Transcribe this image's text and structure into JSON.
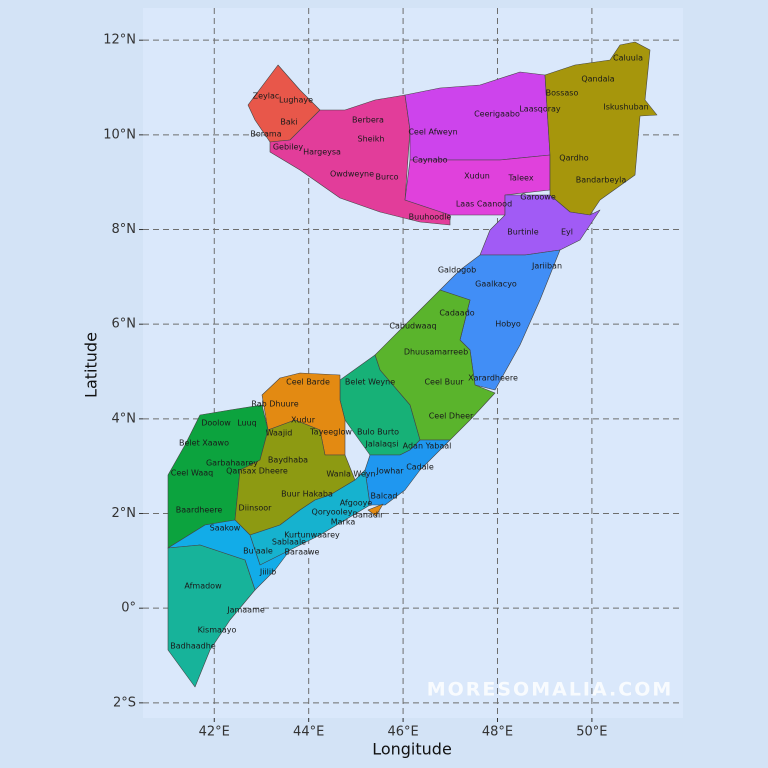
{
  "map": {
    "x_label": "Longitude",
    "y_label": "Latitude",
    "xlim": [
      40.49,
      51.93
    ],
    "ylim": [
      -2.32,
      12.68
    ],
    "xticks": [
      {
        "value": 42,
        "label": "42°E"
      },
      {
        "value": 44,
        "label": "44°E"
      },
      {
        "value": 46,
        "label": "46°E"
      },
      {
        "value": 48,
        "label": "48°E"
      },
      {
        "value": 50,
        "label": "50°E"
      }
    ],
    "yticks": [
      {
        "value": -2,
        "label": "2°S"
      },
      {
        "value": 0,
        "label": "0°"
      },
      {
        "value": 2,
        "label": "2°N"
      },
      {
        "value": 4,
        "label": "4°N"
      },
      {
        "value": 6,
        "label": "6°N"
      },
      {
        "value": 8,
        "label": "8°N"
      },
      {
        "value": 10,
        "label": "10°N"
      },
      {
        "value": 12,
        "label": "12°N"
      }
    ],
    "grid": true,
    "districts": [
      "Caluula",
      "Qandala",
      "Bossaso",
      "Iskushuban",
      "Laasqoray",
      "Ceerigaabo",
      "Zeylac",
      "Lughaye",
      "Baki",
      "Borama",
      "Gebiley",
      "Berbera",
      "Ceel Afweyn",
      "Sheikh",
      "Hargeysa",
      "Caynabo",
      "Qardho",
      "Owdweyne",
      "Burco",
      "Xudun",
      "Taleex",
      "Bandarbeyla",
      "Garoowe",
      "Laas Caanood",
      "Buuhoodle",
      "Burtinle",
      "Eyl",
      "Jariiban",
      "Galdogob",
      "Gaalkacyo",
      "Cadaado",
      "Hobyo",
      "Cabudwaaq",
      "Dhuusamarreeb",
      "Xarardheere",
      "Ceel Barde",
      "Belet Weyne",
      "Ceel Buur",
      "Rab Dhuure",
      "Ceel Dheer",
      "Doolow",
      "Luuq",
      "Xudur",
      "Waajid",
      "Tayeeglow",
      "Bulo Burto",
      "Belet Xaawo",
      "Jalalaqsi",
      "Adan Yabaal",
      "Baydhaba",
      "Garbahaarey",
      "Qansax Dheere",
      "Ceel Waaq",
      "Wanla Weyn",
      "Jowhar",
      "Cadale",
      "Buur Hakaba",
      "Balcad",
      "Afgooye",
      "Baardheere",
      "Diinsoor",
      "Qoryooley",
      "Banadir",
      "Marka",
      "Saakow",
      "Kurtunwaarey",
      "Sablaale",
      "Bu'aale",
      "Baraawe",
      "Jiilib",
      "Afmadow",
      "Jamaame",
      "Kismaayo",
      "Badhaadhe"
    ],
    "watermark": "MORESOMALIA.COM"
  }
}
